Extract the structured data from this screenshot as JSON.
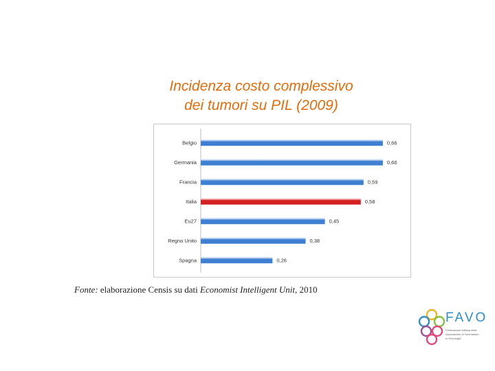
{
  "title": {
    "line1": "Incidenza costo complessivo",
    "line2": "dei tumori su PIL (2009)"
  },
  "chart_data": {
    "type": "bar",
    "orientation": "horizontal",
    "categories": [
      "Belgio",
      "Germania",
      "Francia",
      "Italia",
      "Eu27",
      "Regno Unito",
      "Spagna"
    ],
    "values": [
      0.66,
      0.66,
      0.59,
      0.58,
      0.45,
      0.38,
      0.26
    ],
    "value_labels": [
      "0,66",
      "0,66",
      "0,59",
      "0,58",
      "0,45",
      "0,38",
      "0,26"
    ],
    "highlight_category": "Italia",
    "xlim": [
      0,
      0.74
    ],
    "grid": false,
    "legend": "none",
    "colors": {
      "bar": "#3f7fd2",
      "highlight": "#d42020"
    }
  },
  "source": {
    "label": "Fonte:",
    "text": "elaborazione Censis su dati",
    "italic": "Economist Intelligent Unit,",
    "year": "2010"
  },
  "logo": {
    "name": "FAVO",
    "subtitle_lines": [
      "Federazione italiana delle",
      "Associazioni di Volontariato",
      "in Oncologia"
    ],
    "colors": [
      "#f0b323",
      "#2c8fc9",
      "#9b4f96",
      "#e04a7a",
      "#7fc242"
    ]
  }
}
